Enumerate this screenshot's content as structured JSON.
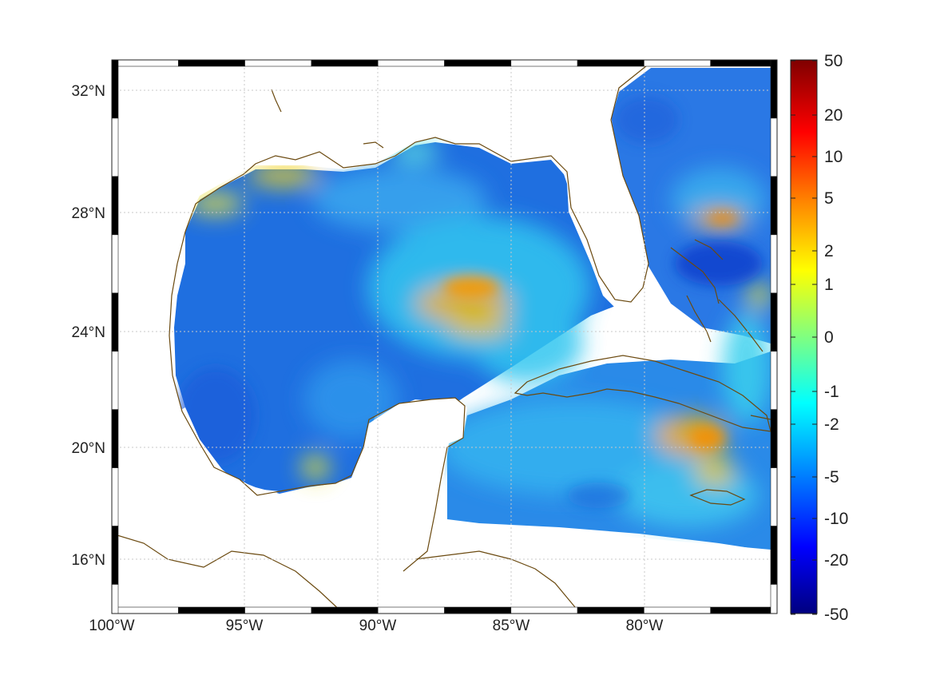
{
  "map": {
    "lon_labels": [
      "100°W",
      "95°W",
      "90°W",
      "85°W",
      "80°W"
    ],
    "lat_labels": [
      "32°N",
      "28°N",
      "24°N",
      "20°N",
      "16°N"
    ],
    "lon_range_deg": [
      -100,
      -75
    ],
    "lat_range_deg": [
      14.3,
      33.0
    ],
    "coastline_color": "#6b4a10",
    "grid": "dotted"
  },
  "colorbar": {
    "tick_labels": [
      "50",
      "20",
      "10",
      "5",
      "2",
      "1",
      "0",
      "-1",
      "-2",
      "-5",
      "-10",
      "-20",
      "-50"
    ],
    "colors": [
      "#7f0000",
      "#ff0000",
      "#ff7f00",
      "#ffff00",
      "#00ffff",
      "#0080ff",
      "#0000ff",
      "#00007f"
    ]
  }
}
